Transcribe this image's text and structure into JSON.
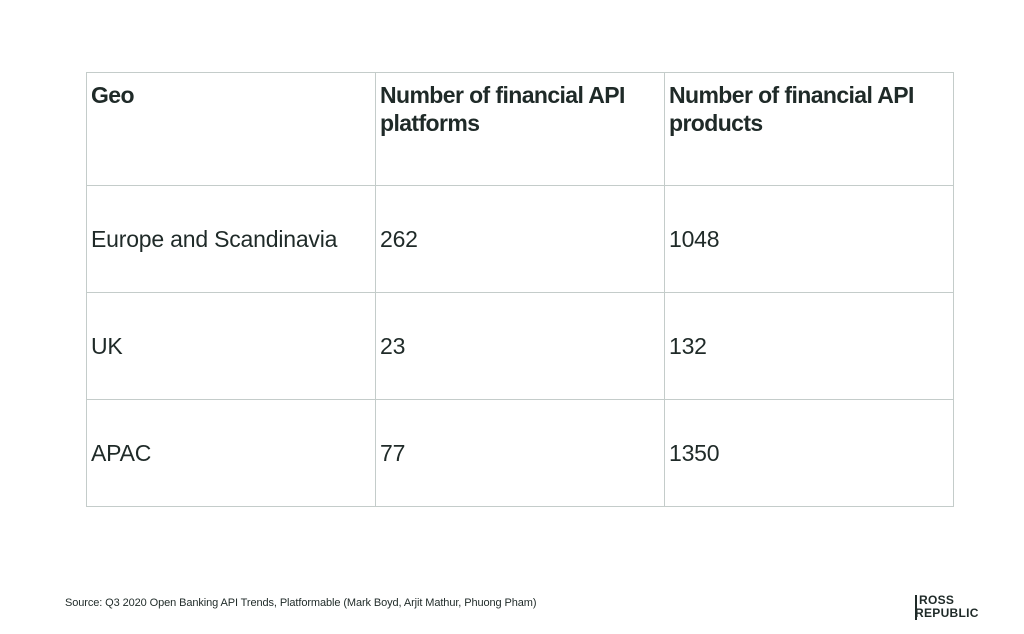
{
  "table": {
    "headers": [
      "Geo",
      "Number of financial API platforms",
      "Number of financial API products"
    ],
    "rows": [
      {
        "geo": "Europe and Scandinavia",
        "platforms": "262",
        "products": "1048"
      },
      {
        "geo": "UK",
        "platforms": "23",
        "products": "132"
      },
      {
        "geo": "APAC",
        "platforms": "77",
        "products": "1350"
      }
    ]
  },
  "footer": {
    "source": "Source: Q3 2020 Open Banking API Trends, Platformable (Mark Boyd, Arjit Mathur, Phuong Pham)"
  },
  "logo": {
    "line1": "ROSS",
    "line2": "REPUBLIC"
  }
}
